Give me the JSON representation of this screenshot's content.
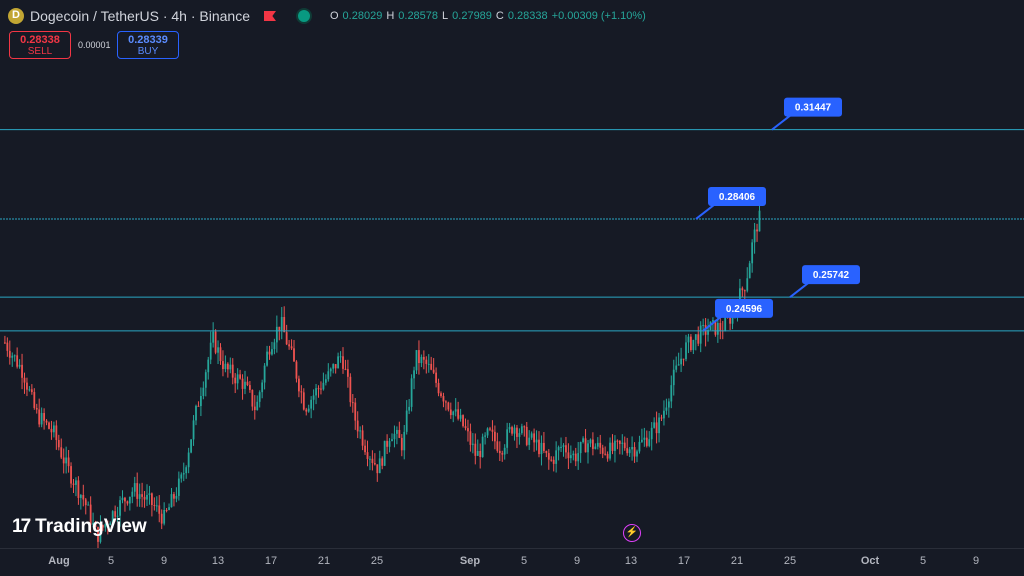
{
  "header": {
    "title": "Dogecoin / TetherUS · 4h · Binance",
    "ohlc": [
      {
        "k": "O",
        "v": "0.28029"
      },
      {
        "k": "H",
        "v": "0.28578"
      },
      {
        "k": "L",
        "v": "0.27989"
      },
      {
        "k": "C",
        "v": "0.28338"
      },
      {
        "k": "",
        "v": "+0.00309 (+1.10%)"
      }
    ]
  },
  "trade": {
    "sell_price": "0.28338",
    "sell_label": "SELL",
    "spread": "0.00001",
    "buy_price": "0.28339",
    "buy_label": "BUY"
  },
  "brand": "TradingView",
  "colors": {
    "up": "#26a69a",
    "down": "#ef5350",
    "level": "#2aa7c4",
    "label": "#2962ff",
    "bg": "#161a25"
  },
  "chart_data": {
    "type": "candlestick",
    "x_ticks": [
      "Aug",
      "5",
      "9",
      "13",
      "17",
      "21",
      "25",
      "Sep",
      "5",
      "9",
      "13",
      "17",
      "21",
      "25",
      "Oct",
      "5",
      "9"
    ],
    "levels": [
      0.31447,
      0.28406,
      0.25742,
      0.24596
    ],
    "ylim": [
      0.172,
      0.345
    ],
    "series": [
      {
        "x": 0,
        "y": 0.242
      },
      {
        "x": 3,
        "y": 0.232
      },
      {
        "x": 5,
        "y": 0.218
      },
      {
        "x": 8,
        "y": 0.211
      },
      {
        "x": 10,
        "y": 0.2
      },
      {
        "x": 13,
        "y": 0.188
      },
      {
        "x": 15,
        "y": 0.176
      },
      {
        "x": 18,
        "y": 0.185
      },
      {
        "x": 21,
        "y": 0.192
      },
      {
        "x": 24,
        "y": 0.187
      },
      {
        "x": 26,
        "y": 0.182
      },
      {
        "x": 29,
        "y": 0.196
      },
      {
        "x": 32,
        "y": 0.226
      },
      {
        "x": 34,
        "y": 0.243
      },
      {
        "x": 36,
        "y": 0.233
      },
      {
        "x": 39,
        "y": 0.228
      },
      {
        "x": 41,
        "y": 0.219
      },
      {
        "x": 43,
        "y": 0.24
      },
      {
        "x": 45,
        "y": 0.249
      },
      {
        "x": 47,
        "y": 0.236
      },
      {
        "x": 49,
        "y": 0.22
      },
      {
        "x": 51,
        "y": 0.226
      },
      {
        "x": 53,
        "y": 0.231
      },
      {
        "x": 55,
        "y": 0.238
      },
      {
        "x": 57,
        "y": 0.217
      },
      {
        "x": 59,
        "y": 0.206
      },
      {
        "x": 61,
        "y": 0.199
      },
      {
        "x": 63,
        "y": 0.212
      },
      {
        "x": 65,
        "y": 0.207
      },
      {
        "x": 67,
        "y": 0.237
      },
      {
        "x": 69,
        "y": 0.234
      },
      {
        "x": 71,
        "y": 0.226
      },
      {
        "x": 73,
        "y": 0.219
      },
      {
        "x": 75,
        "y": 0.213
      },
      {
        "x": 77,
        "y": 0.203
      },
      {
        "x": 79,
        "y": 0.211
      },
      {
        "x": 81,
        "y": 0.206
      },
      {
        "x": 83,
        "y": 0.214
      },
      {
        "x": 85,
        "y": 0.21
      },
      {
        "x": 87,
        "y": 0.207
      },
      {
        "x": 89,
        "y": 0.201
      },
      {
        "x": 91,
        "y": 0.207
      },
      {
        "x": 93,
        "y": 0.203
      },
      {
        "x": 95,
        "y": 0.208
      },
      {
        "x": 97,
        "y": 0.206
      },
      {
        "x": 99,
        "y": 0.205
      },
      {
        "x": 101,
        "y": 0.207
      },
      {
        "x": 103,
        "y": 0.206
      },
      {
        "x": 105,
        "y": 0.21
      },
      {
        "x": 107,
        "y": 0.215
      },
      {
        "x": 109,
        "y": 0.229
      },
      {
        "x": 111,
        "y": 0.24
      },
      {
        "x": 113,
        "y": 0.244
      },
      {
        "x": 115,
        "y": 0.247
      },
      {
        "x": 117,
        "y": 0.247
      },
      {
        "x": 119,
        "y": 0.252
      },
      {
        "x": 120,
        "y": 0.258
      },
      {
        "x": 121,
        "y": 0.263
      },
      {
        "x": 122,
        "y": 0.275
      },
      {
        "x": 123,
        "y": 0.284
      }
    ]
  }
}
